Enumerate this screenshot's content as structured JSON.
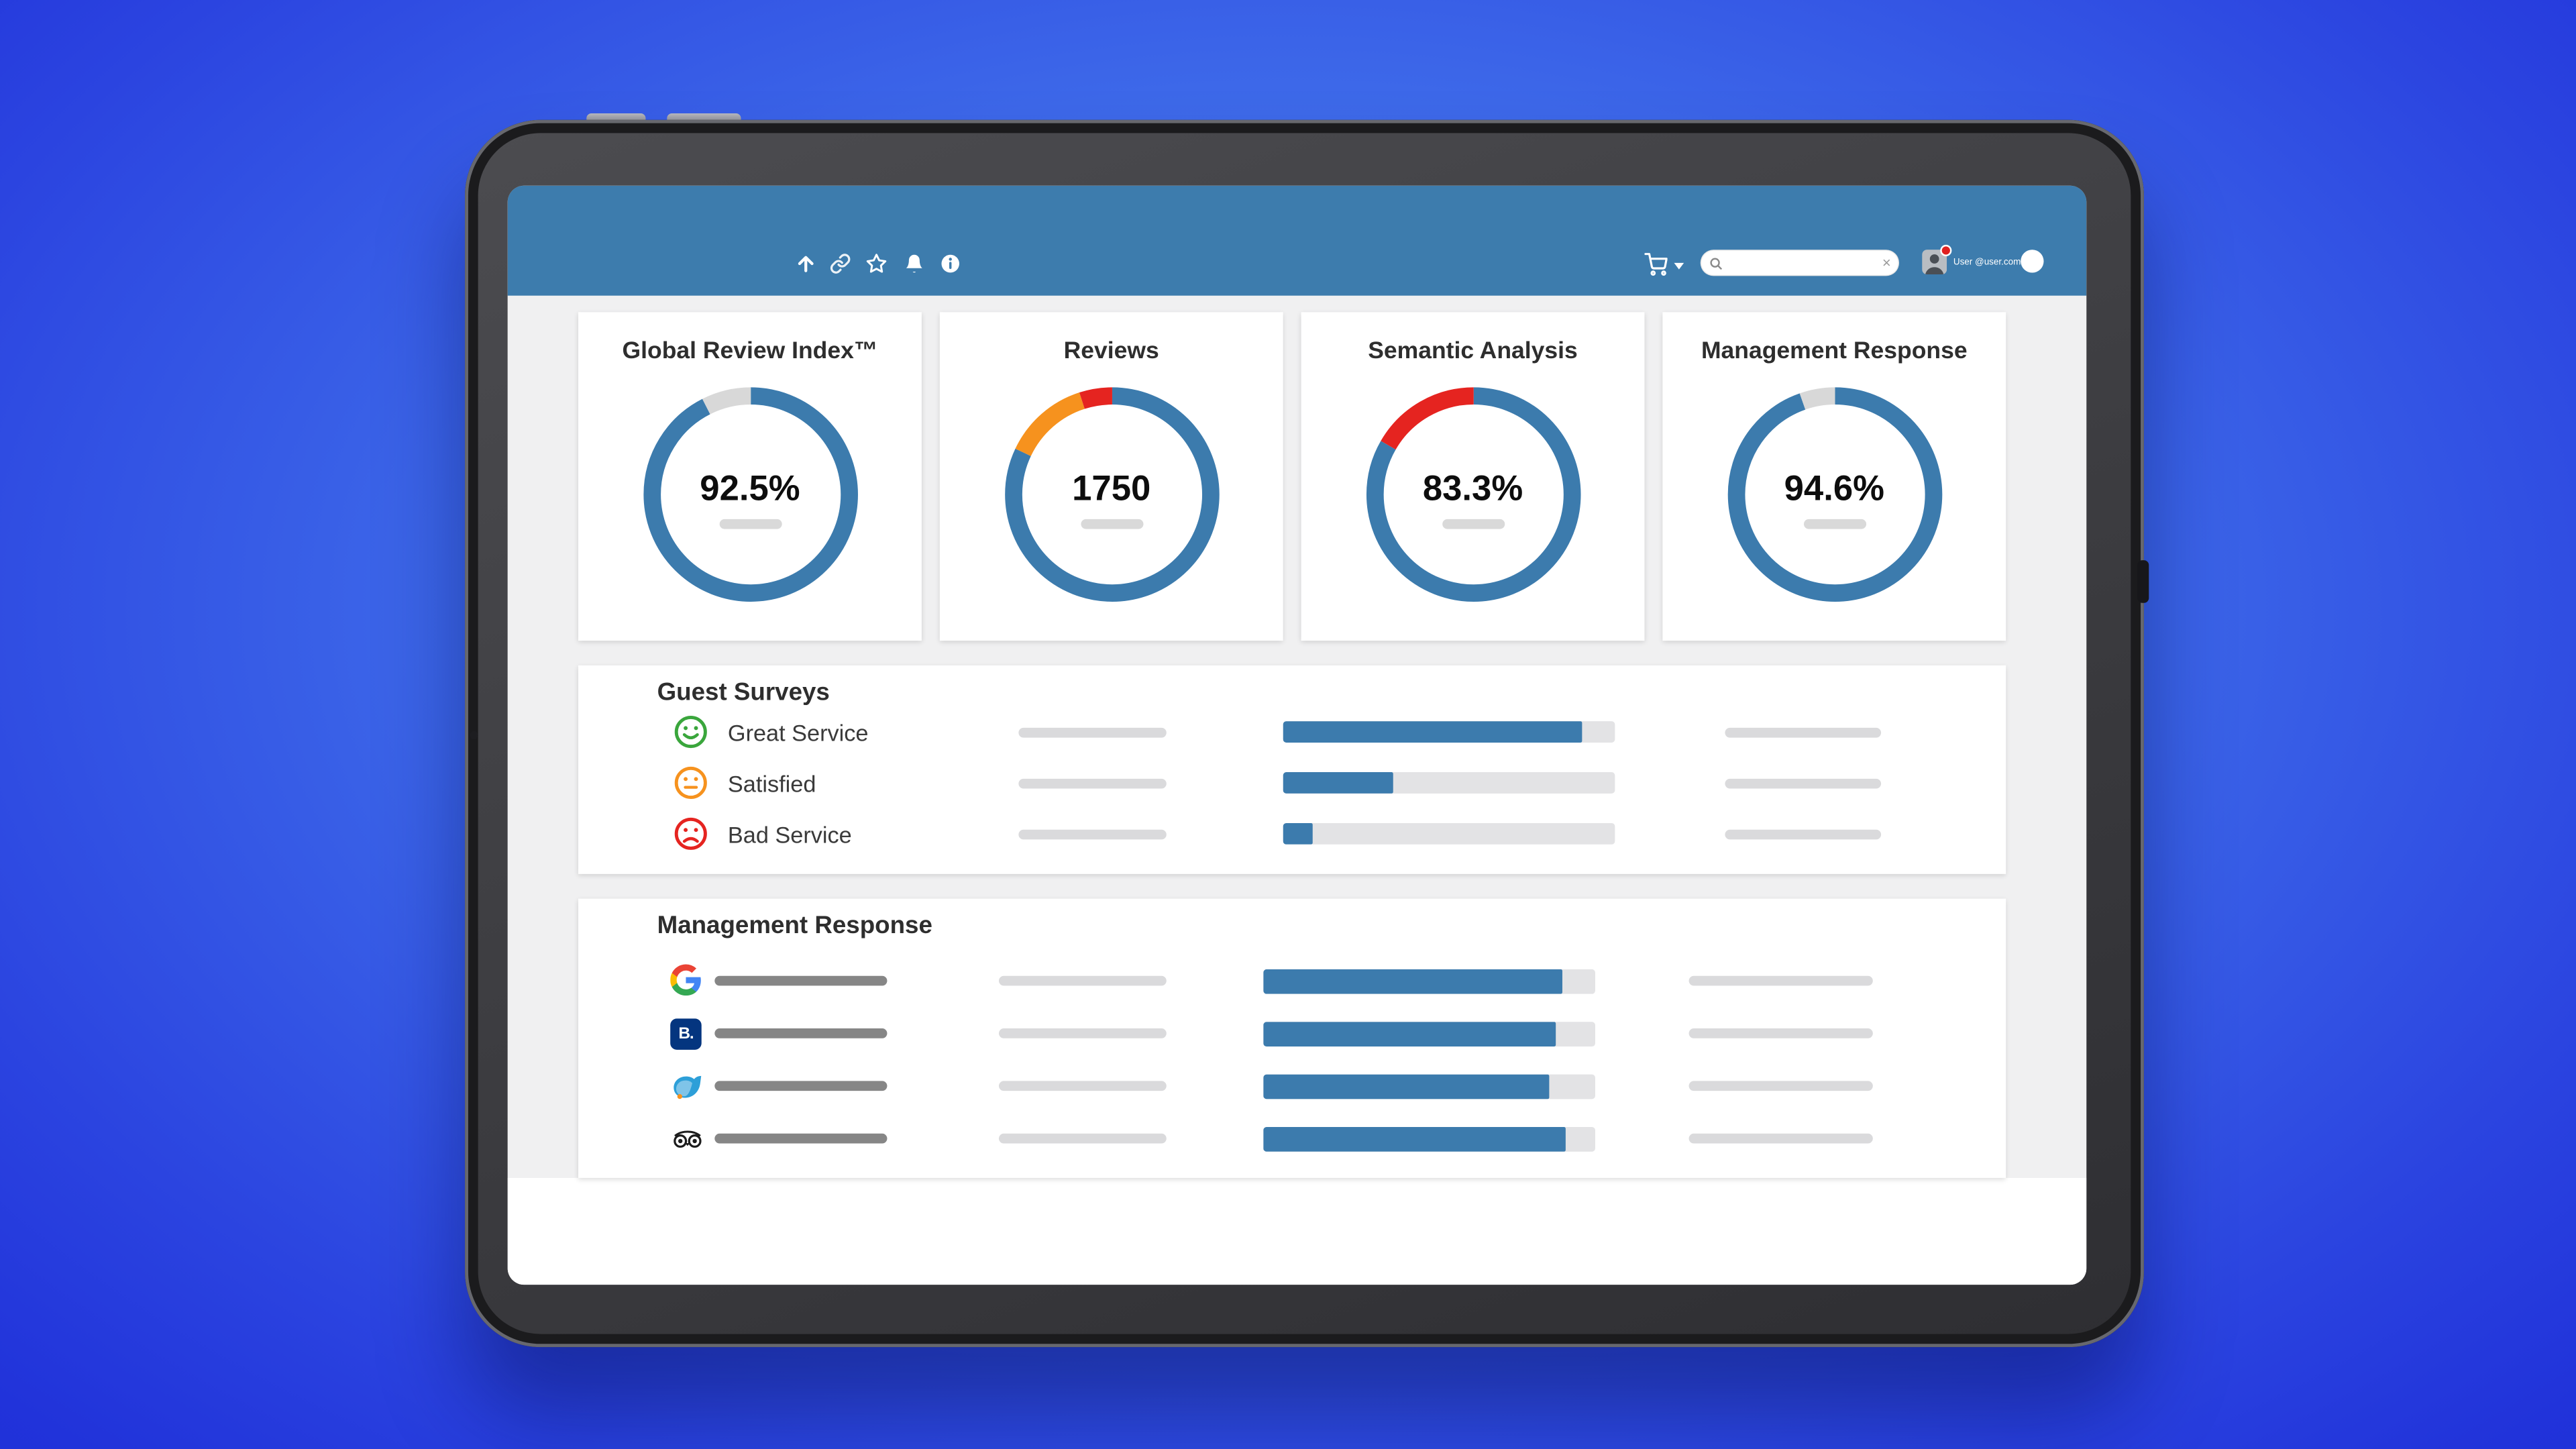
{
  "header": {
    "bar_color": "#3d7cad",
    "icons": [
      {
        "name": "upload-icon"
      },
      {
        "name": "link-icon"
      },
      {
        "name": "star-icon"
      },
      {
        "name": "bell-icon"
      },
      {
        "name": "info-icon"
      }
    ],
    "cart_icon": "cart-icon",
    "cart_caret_icon": "caret-down-icon",
    "search": {
      "value": "",
      "placeholder": "",
      "magnifier_icon": "search-icon",
      "clear_icon": "clear-x-icon"
    },
    "user": {
      "label": "User @user.com",
      "avatar_icon": "user-avatar",
      "notification_badge_icon": "notification-badge"
    },
    "right_circle_icon": "circle-button"
  },
  "kpi_cards": [
    {
      "title": "Global Review Index™",
      "value": "92.5%",
      "segments": [
        {
          "color": "#3c7bad",
          "pct": 92.5
        },
        {
          "color": "#d8d8d8",
          "pct": 7.5
        }
      ]
    },
    {
      "title": "Reviews",
      "value": "1750",
      "segments": [
        {
          "color": "#3c7bad",
          "pct": 82
        },
        {
          "color": "#f6921e",
          "pct": 13
        },
        {
          "color": "#e52420",
          "pct": 5
        }
      ]
    },
    {
      "title": "Semantic Analysis",
      "value": "83.3%",
      "segments": [
        {
          "color": "#3c7bad",
          "pct": 83.3
        },
        {
          "color": "#e52420",
          "pct": 16.7
        }
      ]
    },
    {
      "title": "Management Response",
      "value": "94.6%",
      "segments": [
        {
          "color": "#3c7bad",
          "pct": 94.6
        },
        {
          "color": "#d8d8d8",
          "pct": 5.4
        }
      ]
    }
  ],
  "guest_surveys": {
    "title": "Guest Surveys",
    "rows": [
      {
        "label": "Great Service",
        "icon": "smiley-happy-icon",
        "color": "#3aa63c",
        "progress_pct": 90
      },
      {
        "label": "Satisfied",
        "icon": "smiley-neutral-icon",
        "color": "#f6921e",
        "progress_pct": 33
      },
      {
        "label": "Bad Service",
        "icon": "smiley-sad-icon",
        "color": "#e52420",
        "progress_pct": 9
      }
    ]
  },
  "management_response": {
    "title": "Management Response",
    "rows": [
      {
        "icon": "google-icon",
        "progress_pct": 90
      },
      {
        "icon": "booking-icon",
        "progress_pct": 88
      },
      {
        "icon": "dolphin-ota-icon",
        "progress_pct": 86
      },
      {
        "icon": "tripadvisor-icon",
        "progress_pct": 91
      }
    ]
  },
  "colors": {
    "accent_blue": "#3c7bad",
    "track_gray": "#e3e3e5",
    "placeholder_gray": "#dadadc"
  }
}
